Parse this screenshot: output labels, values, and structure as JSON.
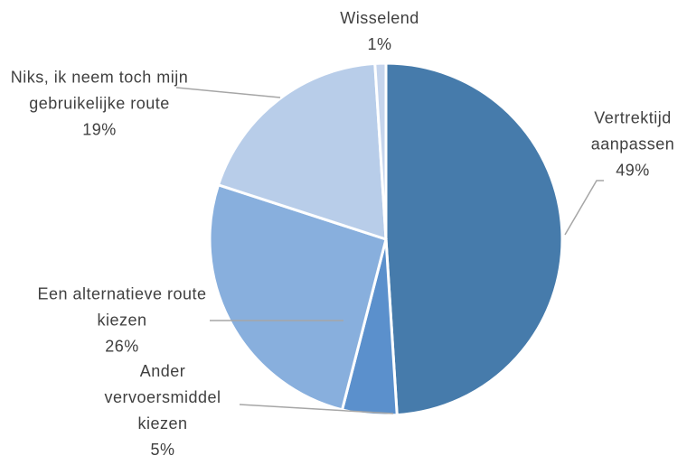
{
  "chart_data": {
    "type": "pie",
    "categories": [
      "Vertrektijd aanpassen",
      "Ander vervoersmiddel kiezen",
      "Een alternatieve route kiezen",
      "Niks, ik neem toch mijn gebruikelijke route",
      "Wisselend"
    ],
    "values": [
      49,
      5,
      26,
      19,
      1
    ],
    "value_labels": [
      "49%",
      "5%",
      "26%",
      "19%",
      "1%"
    ],
    "colors": [
      "#467bab",
      "#5b90cc",
      "#88afdd",
      "#b8cde9",
      "#c6d5ed"
    ]
  }
}
